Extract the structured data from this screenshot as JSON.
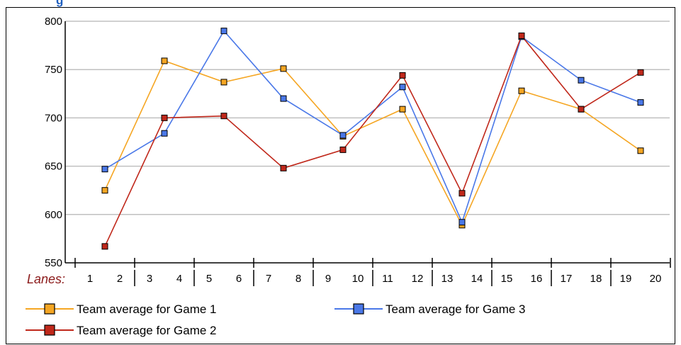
{
  "title_fragment": "g",
  "lanes_label": "Lanes:",
  "colors": {
    "game1": "#f5a623",
    "game2": "#c0281b",
    "game3": "#4a78e8",
    "grid": "#c0c0c0",
    "axis": "#000000",
    "lanes_label": "#8b1a1a",
    "title_fragment": "#1f5fbf"
  },
  "chart_data": {
    "type": "line",
    "title": "",
    "xlabel": "Lanes:",
    "ylabel": "",
    "ylim": [
      550,
      800
    ],
    "yticks": [
      550,
      600,
      650,
      700,
      750,
      800
    ],
    "grid": true,
    "lane_labels": [
      "1",
      "2",
      "3",
      "4",
      "5",
      "6",
      "7",
      "8",
      "9",
      "10",
      "11",
      "12",
      "13",
      "14",
      "15",
      "16",
      "17",
      "18",
      "19",
      "20"
    ],
    "categories": [
      "1-2",
      "3-4",
      "5-6",
      "7-8",
      "9-10",
      "11-12",
      "13-14",
      "15-16",
      "17-18",
      "19-20"
    ],
    "series": [
      {
        "name": "Team average for Game 1",
        "color_key": "game1",
        "values": [
          625,
          759,
          737,
          751,
          681,
          709,
          589,
          728,
          709,
          666
        ]
      },
      {
        "name": "Team average for Game 3",
        "color_key": "game3",
        "values": [
          647,
          684,
          790,
          720,
          682,
          732,
          592,
          784,
          739,
          716
        ]
      },
      {
        "name": "Team average for Game 2",
        "color_key": "game2",
        "values": [
          567,
          700,
          702,
          648,
          667,
          744,
          622,
          785,
          709,
          747
        ]
      }
    ],
    "legend_position": "bottom"
  }
}
